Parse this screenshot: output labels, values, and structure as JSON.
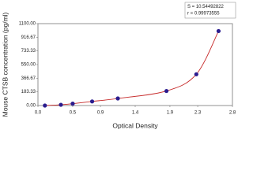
{
  "chart_data": {
    "type": "scatter",
    "x_label": "Optical Density",
    "y_label": "Mouse CTSB concentration (pg/ml)",
    "annotations": [
      "S = 10.54492822",
      "r = 0.99973555"
    ],
    "x": [
      0.1,
      0.33,
      0.5,
      0.78,
      1.15,
      1.85,
      2.28,
      2.6
    ],
    "series": [
      {
        "color": "#2b1d8f",
        "values": [
          0,
          10,
          25,
          55,
          95,
          195,
          420,
          1000
        ]
      }
    ],
    "fit_color": "#c62828",
    "xlim": [
      0,
      2.8
    ],
    "xticks": [
      {
        "value": 0,
        "label": "0.0"
      },
      0.5,
      0.9,
      1.4,
      1.9,
      2.3,
      2.8
    ],
    "ylim": [
      0,
      1100
    ],
    "yticks": [
      {
        "value": 0,
        "label": "0.00"
      },
      183.33,
      366.67,
      {
        "value": 550,
        "label": "550.00"
      },
      733.33,
      916.67,
      {
        "value": 1100,
        "label": "1100.00"
      }
    ]
  }
}
